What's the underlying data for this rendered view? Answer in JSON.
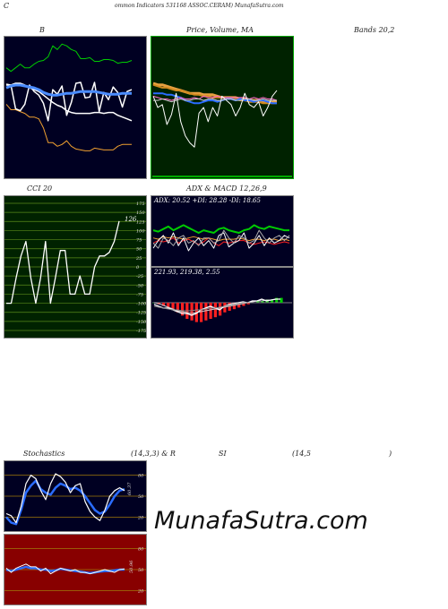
{
  "header": {
    "letter_c": "C",
    "title": "ommon  Indicators 531168  ASSOC.CERAM) MunafaSutra.com"
  },
  "labels": {
    "bollinger_b": "B",
    "price_ma": "Price,  Volume,  MA",
    "bands": "Bands 20,2",
    "cci": "CCI 20",
    "adx_macd": "ADX  & MACD 12,26,9",
    "stoch": "Stochastics",
    "stoch_params": "(14,3,3) & R",
    "rsi_si": "SI",
    "rsi_params": "(14,5",
    "rsi_close": ")"
  },
  "colors": {
    "panel_bg": "#000022",
    "price_bg": "#002200",
    "rsi_bg": "#880000",
    "grid_gold": "#a0780a",
    "grid_green": "#5a8a1a",
    "white": "#ffffff",
    "blue": "#2a6cff",
    "orange": "#f0a030",
    "green": "#00cc00",
    "red": "#ff2020"
  },
  "chart_data": [
    {
      "type": "line",
      "panel": "bollinger",
      "title": "B",
      "series": [
        {
          "values": [
            0.66,
            0.62,
            0.66,
            0.7,
            0.66,
            0.66,
            0.7,
            0.73,
            0.74,
            0.78,
            0.9,
            0.86,
            0.92,
            0.9,
            0.86,
            0.84,
            0.76,
            0.76,
            0.77,
            0.73,
            0.73,
            0.75,
            0.75,
            0.74,
            0.71,
            0.72,
            0.72,
            0.74
          ]
        },
        {
          "values": [
            0.44,
            0.46,
            0.47,
            0.47,
            0.46,
            0.45,
            0.44,
            0.42,
            0.39,
            0.37,
            0.36,
            0.36,
            0.37,
            0.38,
            0.38,
            0.39,
            0.4,
            0.4,
            0.4,
            0.4,
            0.39,
            0.38,
            0.37,
            0.37,
            0.37,
            0.38,
            0.38,
            0.38
          ]
        },
        {
          "values": [
            0.48,
            0.47,
            0.49,
            0.49,
            0.47,
            0.44,
            0.42,
            0.4,
            0.36,
            0.32,
            0.28,
            0.25,
            0.23,
            0.19,
            0.17,
            0.16,
            0.16,
            0.16,
            0.16,
            0.17,
            0.17,
            0.16,
            0.17,
            0.17,
            0.14,
            0.12,
            0.1,
            0.08
          ]
        },
        {
          "values": [
            0.26,
            0.2,
            0.2,
            0.18,
            0.16,
            0.12,
            0.12,
            0.1,
            0.0,
            -0.16,
            -0.16,
            -0.2,
            -0.18,
            -0.14,
            -0.2,
            -0.23,
            -0.24,
            -0.25,
            -0.25,
            -0.22,
            -0.23,
            -0.24,
            -0.24,
            -0.24,
            -0.2,
            -0.18,
            -0.18,
            -0.18
          ]
        },
        {
          "values": [
            0.47,
            0.47,
            0.21,
            0.19,
            0.26,
            0.47,
            0.4,
            0.36,
            0.27,
            0.08,
            0.42,
            0.37,
            0.46,
            0.14,
            0.28,
            0.49,
            0.5,
            0.33,
            0.34,
            0.5,
            0.18,
            0.39,
            0.31,
            0.45,
            0.39,
            0.23,
            0.4,
            0.42
          ]
        }
      ]
    },
    {
      "type": "line",
      "panel": "price-volume-ma",
      "title": "Price, Volume, MA",
      "series": [
        {
          "values": [
            0.67,
            0.66,
            0.66,
            0.65,
            0.64,
            0.63,
            0.62,
            0.61,
            0.6,
            0.6,
            0.6,
            0.59,
            0.59,
            0.59,
            0.58,
            0.57,
            0.57,
            0.57,
            0.57,
            0.56,
            0.56,
            0.55,
            0.55,
            0.55,
            0.54,
            0.54,
            0.54,
            0.54
          ]
        },
        {
          "values": [
            0.66,
            0.65,
            0.64,
            0.64,
            0.63,
            0.62,
            0.62,
            0.61,
            0.6,
            0.59,
            0.59,
            0.58,
            0.58,
            0.57,
            0.57,
            0.57,
            0.56,
            0.56,
            0.56,
            0.55,
            0.55,
            0.54,
            0.54,
            0.54,
            0.53,
            0.53,
            0.53,
            0.53
          ]
        },
        {
          "values": [
            0.6,
            0.6,
            0.6,
            0.59,
            0.59,
            0.58,
            0.57,
            0.55,
            0.54,
            0.53,
            0.53,
            0.54,
            0.55,
            0.55,
            0.54,
            0.55,
            0.56,
            0.56,
            0.55,
            0.56,
            0.55,
            0.55,
            0.54,
            0.55,
            0.55,
            0.54,
            0.53,
            0.53
          ]
        },
        {
          "values": [
            0.58,
            0.57,
            0.56,
            0.56,
            0.55,
            0.56,
            0.57,
            0.56,
            0.56,
            0.57,
            0.56,
            0.58,
            0.57,
            0.57,
            0.58,
            0.57,
            0.57,
            0.57,
            0.57,
            0.57,
            0.57,
            0.56,
            0.57,
            0.56,
            0.57,
            0.56,
            0.56,
            0.55
          ]
        },
        {
          "values": [
            0.58,
            0.5,
            0.52,
            0.38,
            0.45,
            0.6,
            0.4,
            0.3,
            0.25,
            0.22,
            0.46,
            0.5,
            0.4,
            0.5,
            0.44,
            0.58,
            0.55,
            0.52,
            0.44,
            0.5,
            0.6,
            0.52,
            0.5,
            0.54,
            0.44,
            0.5,
            0.58,
            0.62
          ]
        },
        {
          "values": [
            0.55,
            0.55,
            0.56,
            0.55,
            0.54,
            0.55,
            0.56,
            0.55,
            0.55,
            0.56,
            0.56,
            0.55,
            0.56,
            0.56,
            0.55,
            0.55,
            0.56,
            0.56,
            0.55,
            0.55,
            0.56,
            0.56,
            0.55,
            0.55,
            0.56,
            0.55,
            0.55,
            0.55
          ]
        }
      ]
    },
    {
      "type": "line",
      "panel": "cci",
      "title": "CCI 20",
      "ylim": [
        -175,
        175
      ],
      "y_ticks": [
        175,
        150,
        125,
        100,
        75,
        50,
        25,
        0,
        -25,
        -50,
        -75,
        -100,
        -125,
        -150,
        -175
      ],
      "last_value_label": "126",
      "series": [
        {
          "values": [
            -100,
            -100,
            -30,
            30,
            70,
            -30,
            -100,
            -30,
            70,
            -100,
            -30,
            45,
            45,
            -75,
            -75,
            -25,
            -75,
            -75,
            0,
            30,
            30,
            40,
            70,
            126
          ]
        }
      ]
    },
    {
      "type": "line",
      "panel": "adx",
      "annotation": "ADX: 20.52  +DI: 28.28  -DI: 18.65",
      "series": [
        {
          "values": [
            28,
            27,
            29,
            31,
            28,
            30,
            32,
            30,
            28,
            26,
            28,
            27,
            26,
            29,
            30,
            28,
            27,
            26,
            28,
            29,
            32,
            30,
            29,
            31,
            30,
            29,
            28,
            28
          ]
        },
        {
          "values": [
            18,
            20,
            19,
            20,
            22,
            18,
            20,
            21,
            19,
            17,
            19,
            22,
            18,
            16,
            19,
            18,
            19,
            20,
            20,
            18,
            17,
            18,
            19,
            18,
            17,
            18,
            19,
            18
          ]
        },
        {
          "values": [
            22,
            21,
            23,
            22,
            23,
            22,
            21,
            22,
            23,
            22,
            21,
            22,
            21,
            20,
            21,
            21,
            21,
            22,
            21,
            20,
            21,
            21,
            20,
            21,
            21,
            20,
            21,
            20
          ]
        },
        {
          "values": [
            14,
            20,
            24,
            18,
            26,
            16,
            22,
            12,
            18,
            22,
            16,
            20,
            14,
            24,
            26,
            15,
            18,
            20,
            26,
            14,
            18,
            24,
            16,
            22,
            18,
            20,
            24,
            22
          ]
        },
        {
          "values": [
            18,
            14,
            22,
            20,
            16,
            22,
            24,
            18,
            20,
            16,
            22,
            22,
            18,
            20,
            28,
            22,
            18,
            24,
            22,
            18,
            20,
            28,
            22,
            18,
            22,
            24,
            20,
            24
          ]
        }
      ]
    },
    {
      "type": "bar",
      "panel": "macd",
      "annotation": "221.93,  219.38,  2.55",
      "series": [
        {
          "values": [
            0,
            -1,
            -2,
            -3,
            -4,
            -6,
            -8,
            -10,
            -11,
            -12,
            -12,
            -11,
            -10,
            -9,
            -8,
            -6,
            -5,
            -4,
            -3,
            -2,
            -1,
            0,
            1,
            1,
            2,
            2,
            3,
            3
          ]
        },
        {
          "values": [
            0,
            -1,
            -3,
            -5,
            -7,
            -9,
            -10,
            -11,
            -12,
            -11,
            -10,
            -9,
            -8,
            -7,
            -6,
            -5,
            -4,
            -3,
            -2,
            -1,
            0,
            1,
            2,
            2,
            3,
            3,
            4,
            4
          ]
        },
        {
          "values": [
            -2,
            -4,
            -6,
            -6,
            -8,
            -10,
            -12,
            -12,
            -14,
            -12,
            -8,
            -6,
            -4,
            -6,
            -8,
            -4,
            -2,
            -1,
            0,
            1,
            0,
            2,
            2,
            4,
            2,
            3,
            4,
            4
          ]
        },
        {
          "values": [
            -4,
            -5,
            -6,
            -7,
            -8,
            -8,
            -9,
            -9,
            -9,
            -8,
            -8,
            -7,
            -6,
            -6,
            -5,
            -4,
            -3,
            -2,
            -1,
            0,
            0,
            0,
            0,
            0,
            0,
            0,
            0,
            0
          ]
        }
      ]
    },
    {
      "type": "line",
      "panel": "stochastics",
      "title": "Stochastics (14,3,3)",
      "ylim": [
        0,
        100
      ],
      "y_ticks": [
        20,
        50,
        80
      ],
      "value_label": "60.37",
      "series": [
        {
          "values": [
            20,
            12,
            10,
            30,
            55,
            65,
            72,
            60,
            55,
            52,
            62,
            68,
            65,
            60,
            62,
            58,
            50,
            40,
            30,
            25,
            28,
            38,
            50,
            58,
            60
          ]
        },
        {
          "values": [
            25,
            22,
            12,
            35,
            68,
            80,
            75,
            58,
            45,
            68,
            82,
            78,
            70,
            55,
            65,
            68,
            42,
            28,
            20,
            15,
            30,
            50,
            58,
            62,
            58
          ]
        }
      ]
    },
    {
      "type": "line",
      "panel": "rsi",
      "ylim": [
        0,
        100
      ],
      "y_ticks": [
        20,
        50,
        80
      ],
      "value_label": "50.96",
      "series": [
        {
          "values": [
            50,
            48,
            50,
            52,
            54,
            52,
            52,
            50,
            50,
            48,
            49,
            51,
            50,
            49,
            48,
            47,
            46,
            45,
            46,
            47,
            48,
            48,
            49,
            50,
            50
          ]
        },
        {
          "values": [
            52,
            46,
            52,
            55,
            58,
            54,
            54,
            48,
            52,
            44,
            48,
            52,
            50,
            48,
            50,
            46,
            46,
            44,
            46,
            48,
            50,
            48,
            46,
            50,
            51
          ]
        }
      ]
    }
  ],
  "watermark": "MunafaSutra.com"
}
